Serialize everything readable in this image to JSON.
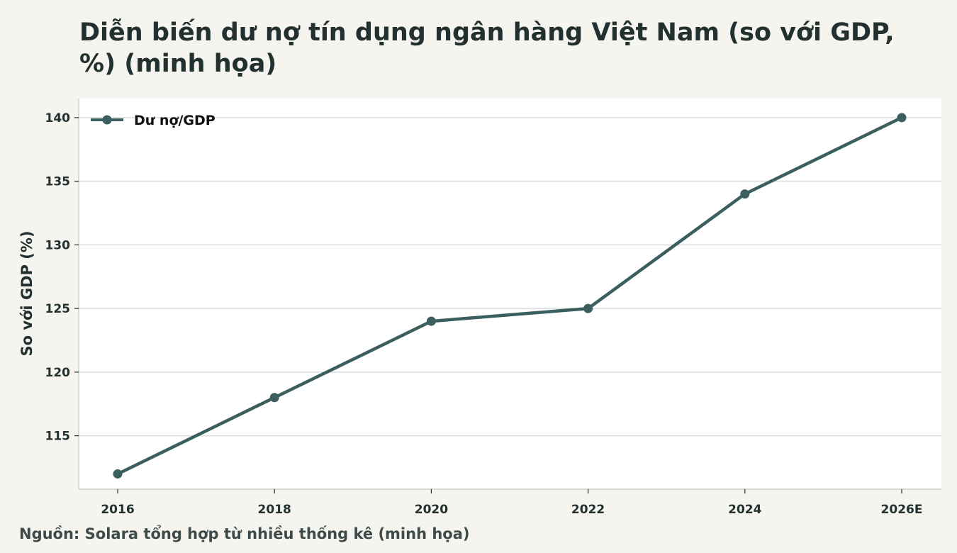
{
  "colors": {
    "background": "#f5f4ef",
    "plot_background": "#ffffff",
    "series": "#3b5e5e",
    "grid": "#d8dcdc"
  },
  "chart_data": {
    "type": "line",
    "title": "Diễn biến dư nợ tín dụng ngân hàng Việt Nam (so với GDP, %) (minh họa)",
    "xlabel": "",
    "ylabel": "So với GDP (%)",
    "categories": [
      "2016",
      "2018",
      "2020",
      "2022",
      "2024",
      "2026E"
    ],
    "series": [
      {
        "name": "Dư nợ/GDP",
        "values": [
          112,
          118,
          124,
          125,
          134,
          140
        ]
      }
    ],
    "yticks": [
      115,
      120,
      125,
      130,
      135,
      140
    ],
    "ylim": [
      110.8,
      141.5
    ],
    "grid": "horizontal",
    "legend_position": "top-left",
    "source": "Nguồn: Solara tổng hợp từ nhiều thống kê (minh họa)"
  }
}
